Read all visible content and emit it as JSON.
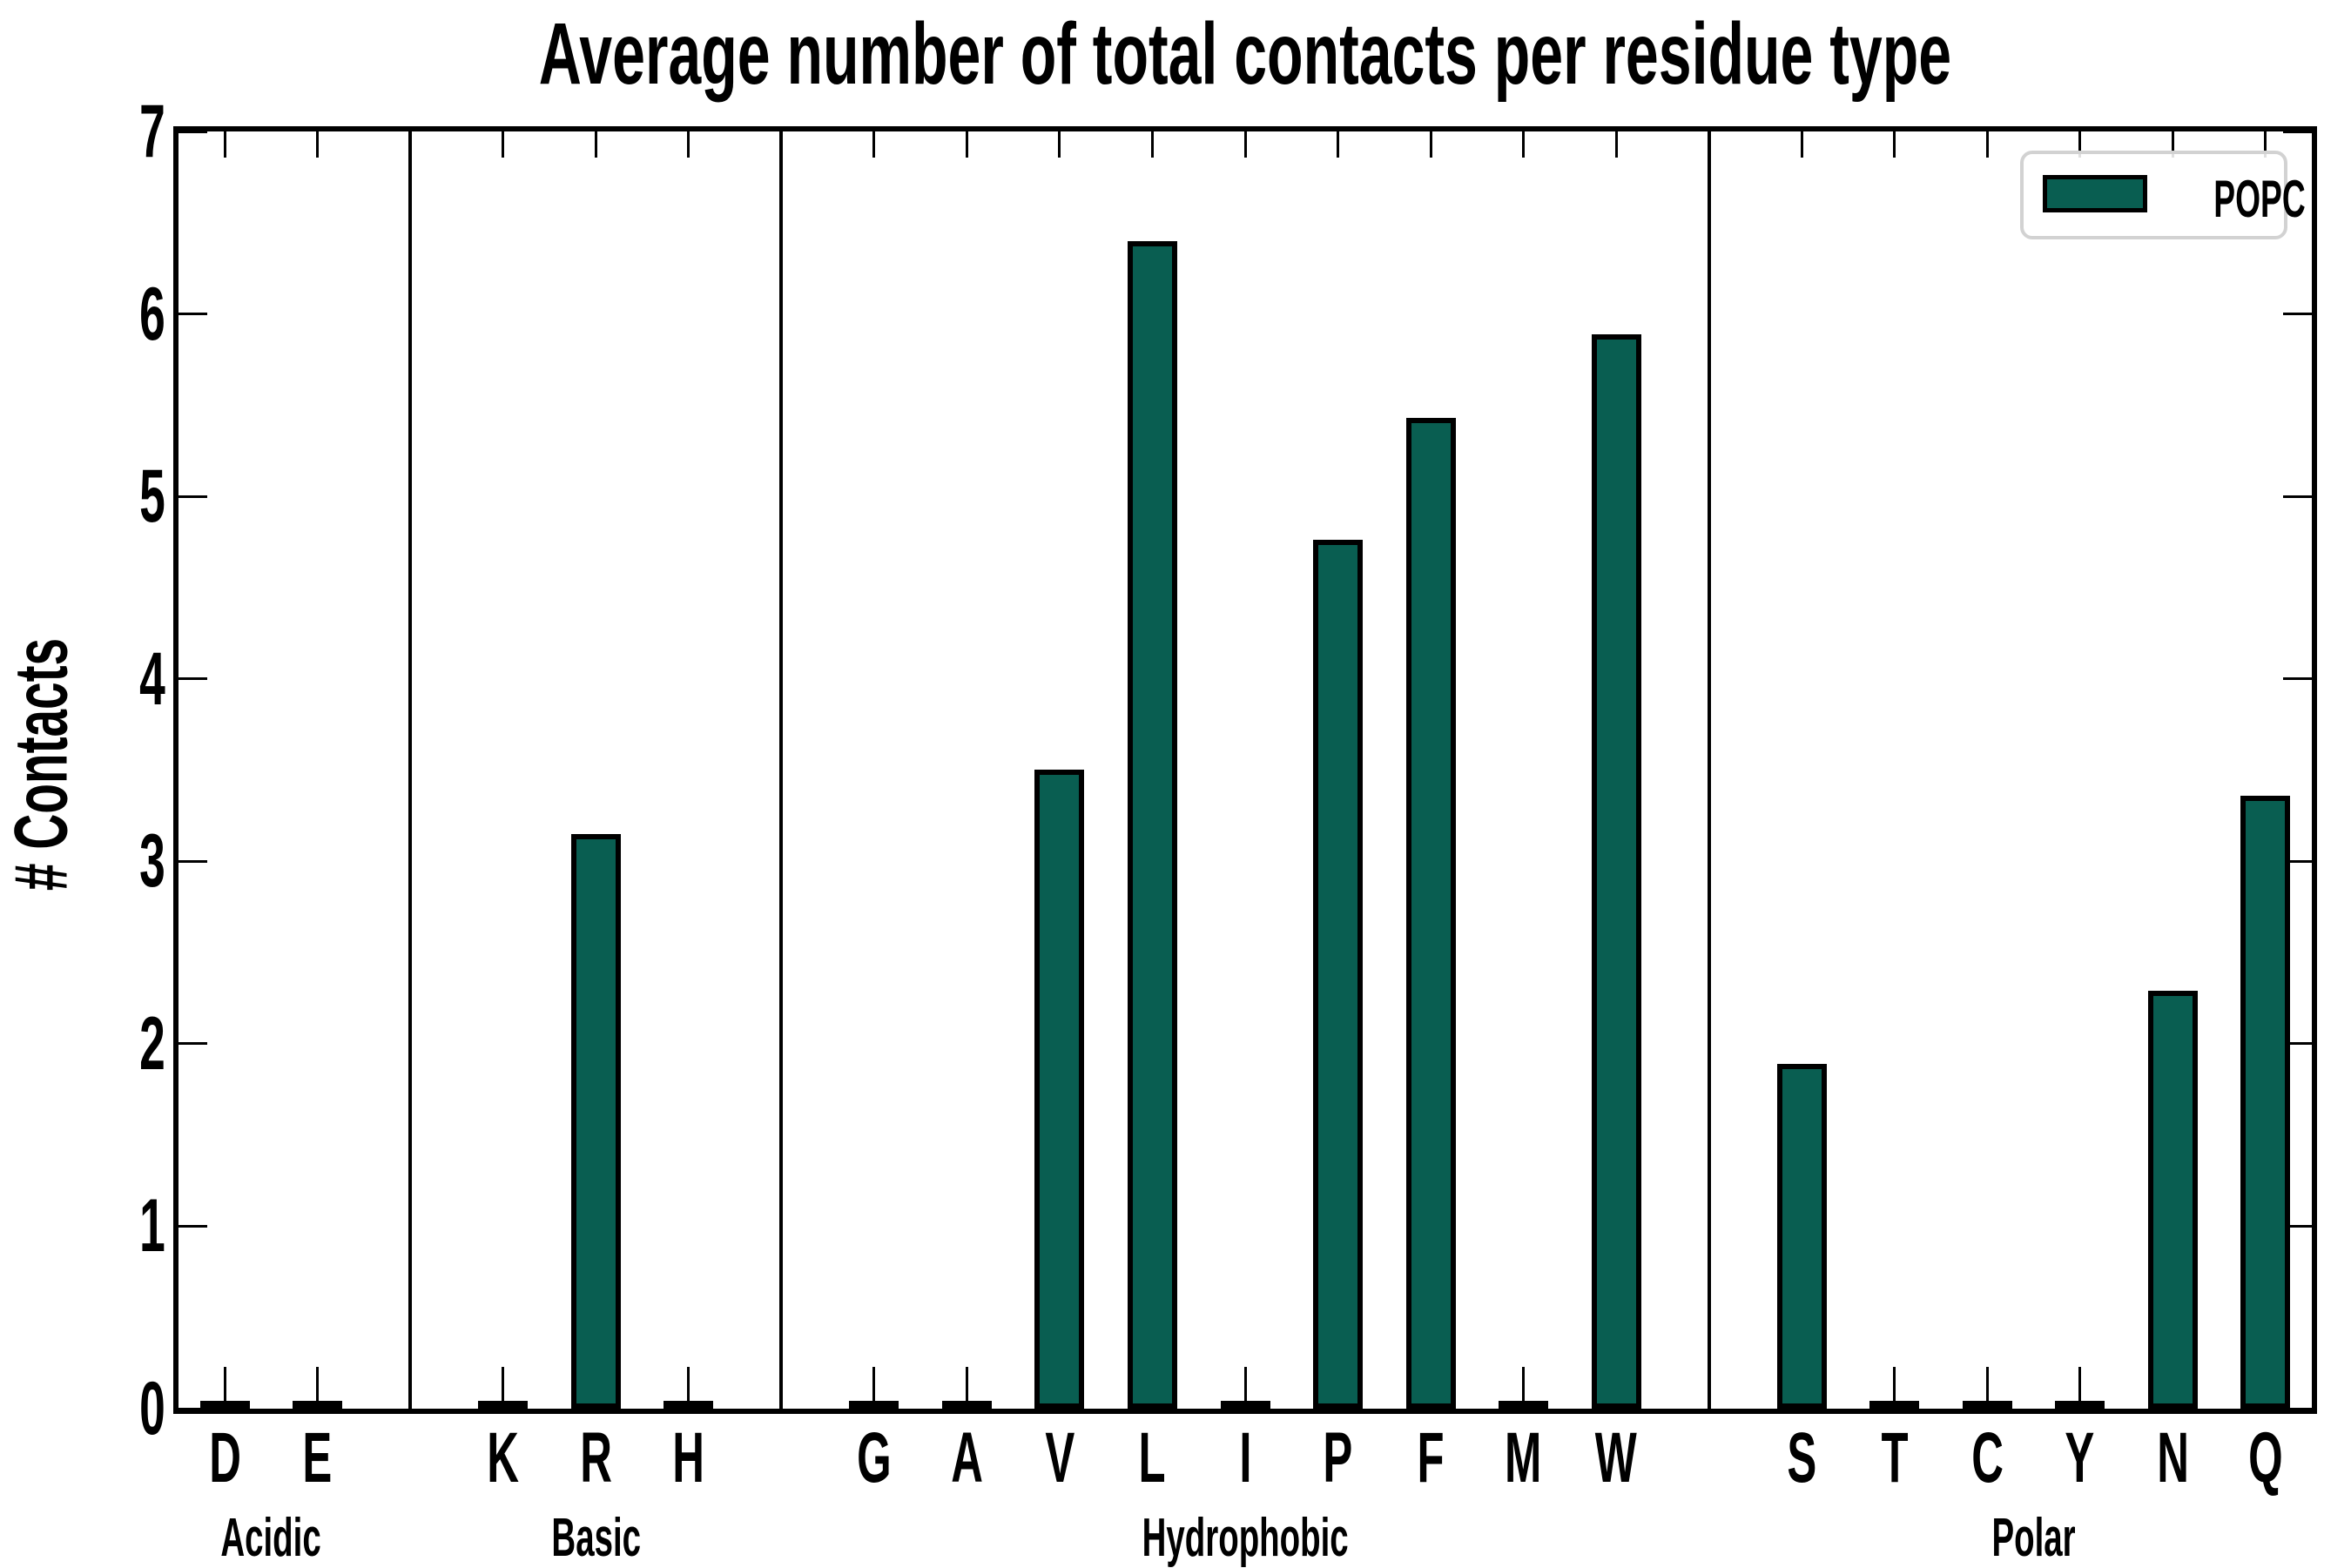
{
  "chart_data": {
    "type": "bar",
    "title": "Average number of total contacts per residue type",
    "ylabel": "# Contacts",
    "xlabel": "",
    "ylim": [
      0,
      7
    ],
    "yticks": [
      "0",
      "1",
      "2",
      "3",
      "4",
      "5",
      "6",
      "7"
    ],
    "grid": false,
    "legend": {
      "label": "POPC",
      "position": "upper right"
    },
    "colors": {
      "bar_fill": "#095e51",
      "bar_edge": "#000000",
      "axis": "#000000",
      "legend_border": "#d2d2d2"
    },
    "bar_width_fraction": 0.535,
    "groups": [
      {
        "label": "Acidic",
        "residues": [
          {
            "label": "D",
            "value": 0
          },
          {
            "label": "E",
            "value": 0
          }
        ]
      },
      {
        "label": "Basic",
        "residues": [
          {
            "label": "K",
            "value": 0
          },
          {
            "label": "R",
            "value": 3.15
          },
          {
            "label": "H",
            "value": 0
          }
        ]
      },
      {
        "label": "Hydrophobic",
        "residues": [
          {
            "label": "G",
            "value": 0
          },
          {
            "label": "A",
            "value": 0
          },
          {
            "label": "V",
            "value": 3.5
          },
          {
            "label": "L",
            "value": 6.4
          },
          {
            "label": "I",
            "value": 0
          },
          {
            "label": "P",
            "value": 4.76
          },
          {
            "label": "F",
            "value": 5.43
          },
          {
            "label": "M",
            "value": 0
          },
          {
            "label": "W",
            "value": 5.89
          }
        ]
      },
      {
        "label": "Polar",
        "residues": [
          {
            "label": "S",
            "value": 1.89
          },
          {
            "label": "T",
            "value": 0
          },
          {
            "label": "C",
            "value": 0
          },
          {
            "label": "Y",
            "value": 0
          },
          {
            "label": "N",
            "value": 2.29
          },
          {
            "label": "Q",
            "value": 3.36
          }
        ]
      }
    ]
  }
}
